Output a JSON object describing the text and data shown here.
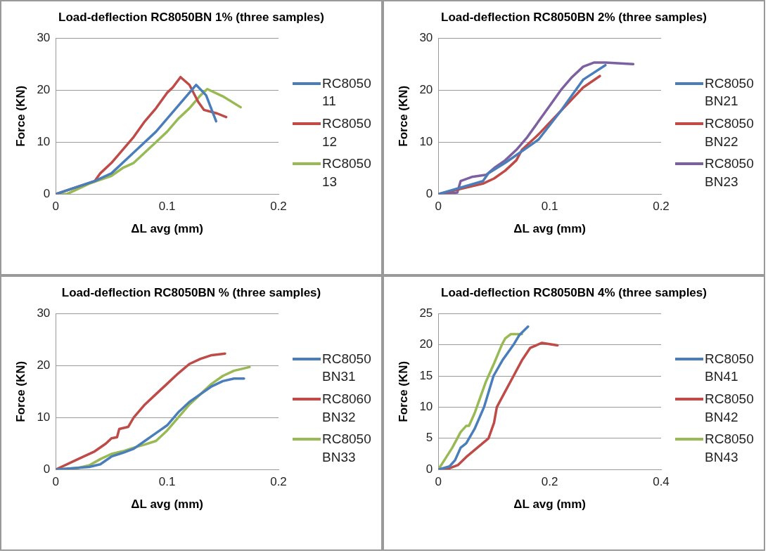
{
  "chart_data": [
    {
      "type": "line",
      "title": "Load-deflection RC8050BN 1% (three samples)",
      "xlabel": "ΔL avg (mm)",
      "ylabel": "Force (KN)",
      "xlim": [
        0,
        0.2
      ],
      "xticks": [
        0,
        0.1,
        0.2
      ],
      "ylim": [
        0,
        30
      ],
      "yticks": [
        0,
        10,
        20,
        30
      ],
      "grid": "y",
      "legend": "right",
      "marker": "none",
      "line_style": "solid",
      "series": [
        {
          "name": "RC805011",
          "color": "#4a7ebb",
          "x": [
            0,
            0.035,
            0.05,
            0.07,
            0.09,
            0.11,
            0.126,
            0.135,
            0.144
          ],
          "values": [
            0,
            2.5,
            4,
            8,
            12,
            17,
            21,
            19,
            14
          ]
        },
        {
          "name": "RC805012",
          "color": "#be4b48",
          "x": [
            0,
            0.035,
            0.04,
            0.05,
            0.06,
            0.07,
            0.08,
            0.09,
            0.1,
            0.105,
            0.112,
            0.12,
            0.128,
            0.133,
            0.145,
            0.153
          ],
          "values": [
            0,
            2.5,
            4,
            6,
            8.5,
            11,
            14,
            16.5,
            19.5,
            20.5,
            22.5,
            21,
            17.7,
            16.2,
            15.5,
            14.8
          ]
        },
        {
          "name": "RC805013",
          "color": "#98b954",
          "x": [
            0,
            0.01,
            0.03,
            0.05,
            0.06,
            0.07,
            0.08,
            0.09,
            0.1,
            0.11,
            0.12,
            0.13,
            0.136,
            0.15,
            0.166
          ],
          "values": [
            0,
            0,
            2,
            3.5,
            5,
            6,
            8,
            10,
            12,
            14.5,
            16.5,
            19,
            20.2,
            18.8,
            16.7
          ]
        }
      ]
    },
    {
      "type": "line",
      "title": "Load-deflection RC8050BN 2% (three samples)",
      "xlabel": "ΔL avg (mm)",
      "ylabel": "Force (KN)",
      "xlim": [
        0,
        0.2
      ],
      "xticks": [
        0,
        0.1,
        0.2
      ],
      "ylim": [
        0,
        30
      ],
      "yticks": [
        0,
        10,
        20,
        30
      ],
      "grid": "y",
      "legend": "right",
      "marker": "none",
      "line_style": "solid",
      "series": [
        {
          "name": "RC8050BN21",
          "color": "#4a7ebb",
          "x": [
            0,
            0.04,
            0.045,
            0.06,
            0.07,
            0.09,
            0.11,
            0.12,
            0.13,
            0.15
          ],
          "values": [
            0,
            2.5,
            4,
            6,
            7.5,
            10.5,
            16,
            19,
            22,
            24.8
          ]
        },
        {
          "name": "RC8050BN22",
          "color": "#be4b48",
          "x": [
            0,
            0.02,
            0.04,
            0.05,
            0.06,
            0.07,
            0.075,
            0.09,
            0.11,
            0.13,
            0.145
          ],
          "values": [
            0,
            1,
            2,
            3,
            4.5,
            6.5,
            8.5,
            11.5,
            16,
            20.5,
            22.7
          ]
        },
        {
          "name": "RC8050BN23",
          "color": "#7d60a0",
          "x": [
            0,
            0.017,
            0.02,
            0.03,
            0.043,
            0.05,
            0.06,
            0.07,
            0.08,
            0.09,
            0.1,
            0.11,
            0.12,
            0.13,
            0.14,
            0.15,
            0.175
          ],
          "values": [
            0,
            0.3,
            2.5,
            3.3,
            3.7,
            5,
            6.5,
            8.5,
            11,
            14,
            17,
            20,
            22.5,
            24.5,
            25.3,
            25.3,
            25
          ]
        }
      ]
    },
    {
      "type": "line",
      "title": "Load-deflection RC8050BN % (three samples)",
      "xlabel": "ΔL avg (mm)",
      "ylabel": "Force (KN)",
      "xlim": [
        0,
        0.2
      ],
      "xticks": [
        0,
        0.1,
        0.2
      ],
      "ylim": [
        0,
        30
      ],
      "yticks": [
        0,
        10,
        20,
        30
      ],
      "grid": "y",
      "legend": "right",
      "marker": "none",
      "line_style": "solid",
      "series": [
        {
          "name": "RC8050BN31",
          "color": "#4a7ebb",
          "x": [
            0,
            0.03,
            0.04,
            0.05,
            0.06,
            0.07,
            0.08,
            0.09,
            0.1,
            0.11,
            0.12,
            0.13,
            0.14,
            0.15,
            0.16,
            0.169
          ],
          "values": [
            0,
            0.5,
            1,
            2.5,
            3.2,
            4,
            5.5,
            7,
            8.5,
            11,
            13,
            14.5,
            16,
            17,
            17.5,
            17.5
          ]
        },
        {
          "name": "RC8060BN32",
          "color": "#be4b48",
          "x": [
            0,
            0.02,
            0.035,
            0.045,
            0.05,
            0.055,
            0.057,
            0.065,
            0.07,
            0.08,
            0.09,
            0.1,
            0.11,
            0.12,
            0.13,
            0.14,
            0.152
          ],
          "values": [
            0,
            2,
            3.5,
            5,
            6,
            6.2,
            7.8,
            8.2,
            10,
            12.5,
            14.5,
            16.5,
            18.5,
            20.3,
            21.3,
            22,
            22.3
          ]
        },
        {
          "name": "RC8050BN33",
          "color": "#98b954",
          "x": [
            0,
            0.02,
            0.03,
            0.04,
            0.05,
            0.06,
            0.07,
            0.08,
            0.09,
            0.1,
            0.11,
            0.12,
            0.13,
            0.14,
            0.15,
            0.16,
            0.174
          ],
          "values": [
            0,
            0.3,
            0.8,
            2,
            3,
            3.5,
            4.2,
            4.8,
            5.5,
            7.5,
            10,
            12.5,
            14.5,
            16.5,
            18,
            19,
            19.7
          ]
        }
      ]
    },
    {
      "type": "line",
      "title": "Load-deflection RC8050BN 4% (three samples)",
      "xlabel": "ΔL avg (mm)",
      "ylabel": "Force (KN)",
      "xlim": [
        0,
        0.4
      ],
      "xticks": [
        0,
        0.2,
        0.4
      ],
      "ylim": [
        0,
        25
      ],
      "yticks": [
        0,
        5,
        10,
        15,
        20,
        25
      ],
      "grid": "y",
      "legend": "right",
      "marker": "none",
      "line_style": "solid",
      "series": [
        {
          "name": "RC8050BN41",
          "color": "#4a7ebb",
          "x": [
            0,
            0.02,
            0.03,
            0.04,
            0.05,
            0.065,
            0.082,
            0.099,
            0.115,
            0.135,
            0.145,
            0.161
          ],
          "values": [
            0,
            0.5,
            1.5,
            3.5,
            4.2,
            6.5,
            10,
            15,
            17.5,
            20,
            21.5,
            22.9
          ]
        },
        {
          "name": "RC8050BN42",
          "color": "#be4b48",
          "x": [
            0,
            0.02,
            0.035,
            0.05,
            0.07,
            0.09,
            0.1,
            0.105,
            0.12,
            0.135,
            0.15,
            0.165,
            0.186,
            0.214
          ],
          "values": [
            0,
            0.2,
            0.7,
            2,
            3.5,
            5,
            7.5,
            10,
            12.5,
            15,
            17.5,
            19.5,
            20.3,
            19.9
          ]
        },
        {
          "name": "RC8050BN43",
          "color": "#98b954",
          "x": [
            0,
            0.025,
            0.04,
            0.05,
            0.055,
            0.065,
            0.075,
            0.085,
            0.09,
            0.1,
            0.114,
            0.12,
            0.13,
            0.15
          ],
          "values": [
            0,
            3.5,
            6,
            7,
            7,
            9,
            11.5,
            14,
            15,
            17,
            20,
            21,
            21.7,
            21.7
          ]
        }
      ]
    }
  ]
}
